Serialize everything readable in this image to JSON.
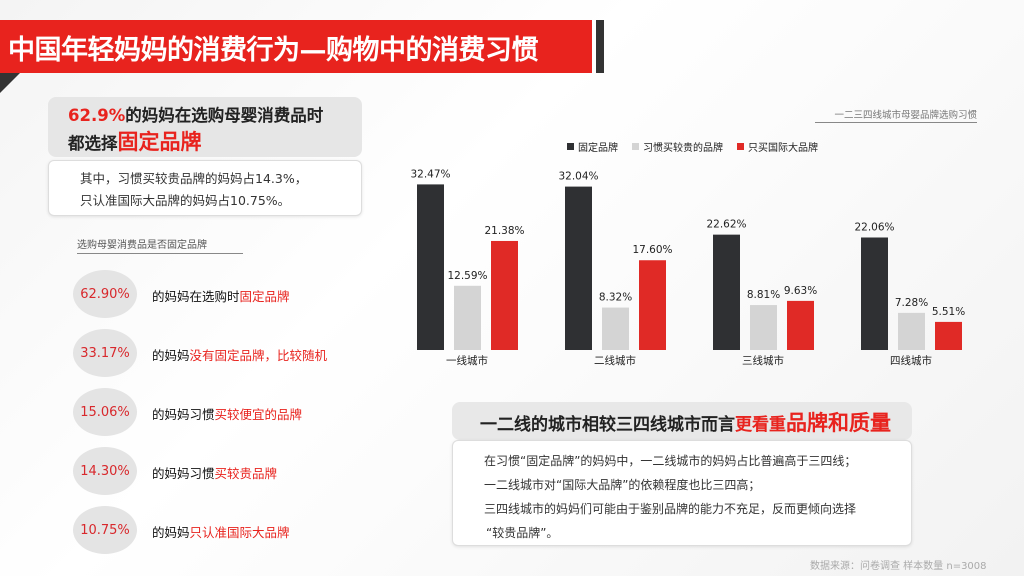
{
  "title": "中国年轻妈妈的消费行为—购物中的消费习惯",
  "headline": {
    "pct": "62.9%",
    "line1_rest": "的妈妈在选购母婴消费品时",
    "line2_pre": "都选择",
    "line2_em": "固定品牌"
  },
  "sub": {
    "line1": "其中，习惯买较贵品牌的妈妈占14.3%，",
    "line2": "只认准国际大品牌的妈妈占10.75%。"
  },
  "list": {
    "title": "选购母婴消费品是否固定品牌",
    "items": [
      {
        "value": "62.90%",
        "pre": "的妈妈在选购时",
        "em": "固定品牌"
      },
      {
        "value": "33.17%",
        "pre": "的妈妈",
        "em": "没有固定品牌，比较随机"
      },
      {
        "value": "15.06%",
        "pre": "的妈妈习惯",
        "em": "买较便宜的品牌"
      },
      {
        "value": "14.30%",
        "pre": "的妈妈习惯",
        "em": "买较贵品牌"
      },
      {
        "value": "10.75%",
        "pre": "的妈妈",
        "em": "只认准国际大品牌"
      }
    ]
  },
  "chart_data": {
    "type": "bar",
    "title": "一二三四线城市母婴品牌选购习惯",
    "categories": [
      "一线城市",
      "二线城市",
      "三线城市",
      "四线城市"
    ],
    "series": [
      {
        "name": "固定品牌",
        "color": "#2f3033",
        "values": [
          32.47,
          32.04,
          22.62,
          22.06
        ],
        "labels": [
          "32.47%",
          "32.04%",
          "22.62%",
          "22.06%"
        ]
      },
      {
        "name": "习惯买较贵的品牌",
        "color": "#d4d4d4",
        "values": [
          12.59,
          8.32,
          8.81,
          7.28
        ],
        "labels": [
          "12.59%",
          "8.32%",
          "8.81%",
          "7.28%"
        ]
      },
      {
        "name": "只买国际大品牌",
        "color": "#e02a26",
        "values": [
          21.38,
          17.6,
          9.63,
          5.51
        ],
        "labels": [
          "21.38%",
          "17.60%",
          "9.63%",
          "5.51%"
        ]
      }
    ],
    "legend": "top",
    "grid": false,
    "ylim": [
      0,
      35
    ]
  },
  "conclusion": {
    "head_pre": "一二线的城市相较三四线城市而言",
    "head_em1": "更看重",
    "head_em2": "品牌和质量",
    "lines": [
      "在习惯“固定品牌”的妈妈中，一二线城市的妈妈占比普遍高于三四线；",
      "一二线城市对“国际大品牌”的依赖程度也比三四高；",
      "三四线城市的妈妈们可能由于鉴别品牌的能力不充足，反而更倾向选择",
      "“较贵品牌”。"
    ]
  },
  "source": "数据来源：问卷调查 样本数量 n=3008"
}
